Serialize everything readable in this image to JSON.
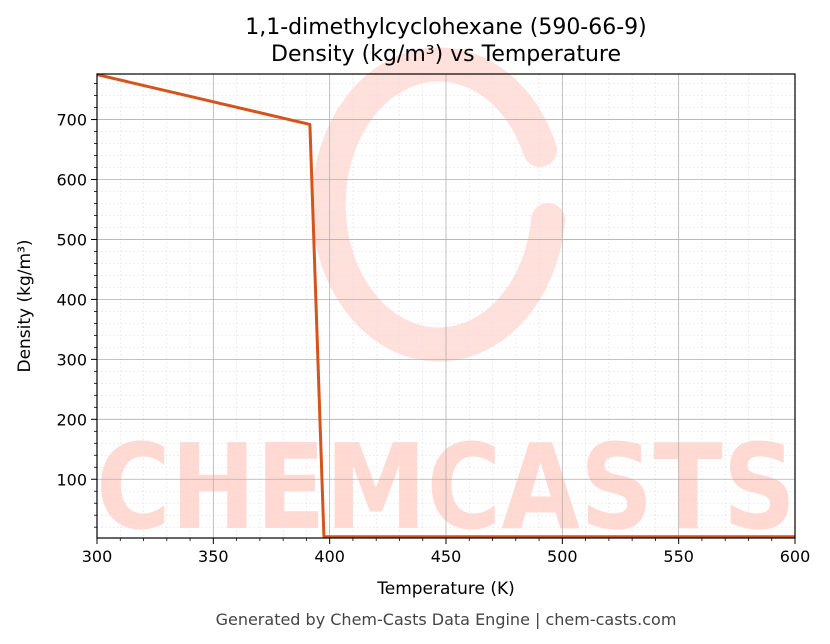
{
  "chart_data": {
    "type": "line",
    "title_lines": [
      "1,1-dimethylcyclohexane (590-66-9)",
      "Density (kg/m³) vs Temperature"
    ],
    "xlabel": "Temperature (K)",
    "ylabel": "Density (kg/m³)",
    "xlim": [
      300,
      600
    ],
    "ylim": [
      2,
      776
    ],
    "xticks": [
      300,
      350,
      400,
      450,
      500,
      550,
      600
    ],
    "yticks": [
      100,
      200,
      300,
      400,
      500,
      600,
      700
    ],
    "grid": true,
    "series": [
      {
        "color": "#d4541e",
        "x": [
          300,
          391.5,
          397.5,
          398.5,
          600
        ],
        "y": [
          775,
          692,
          5,
          4,
          4
        ]
      }
    ]
  },
  "watermark": {
    "text": "CHEMCASTS",
    "color": "#ffd9d2"
  },
  "footer_text": "Generated by Chem-Casts Data Engine | chem-casts.com"
}
